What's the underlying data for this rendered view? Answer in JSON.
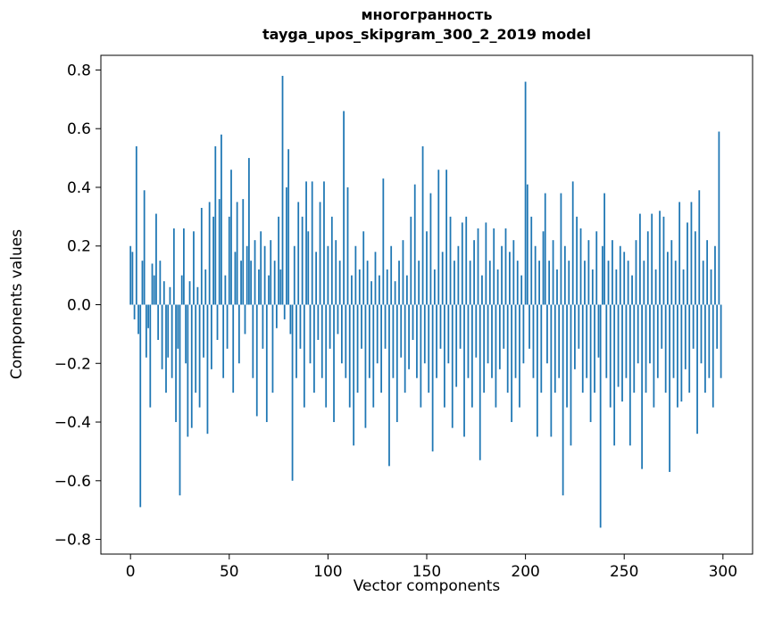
{
  "title": {
    "line1": "многогранность",
    "line2": "tayga_upos_skipgram_300_2_2019 model"
  },
  "chart_data": {
    "type": "bar",
    "title": "многогранность",
    "subtitle": "tayga_upos_skipgram_300_2_2019 model",
    "xlabel": "Vector components",
    "ylabel": "Components values",
    "xlim": [
      -15,
      315
    ],
    "ylim": [
      -0.85,
      0.85
    ],
    "x_ticks": [
      0,
      50,
      100,
      150,
      200,
      250,
      300
    ],
    "y_ticks": [
      -0.8,
      -0.6,
      -0.4,
      -0.2,
      0.0,
      0.2,
      0.4,
      0.6,
      0.8
    ],
    "bar_color": "#1f77b4",
    "bar_width": 0.8,
    "grid": false,
    "legend": null,
    "values": [
      0.2,
      0.18,
      -0.05,
      0.54,
      -0.1,
      -0.69,
      0.15,
      0.39,
      -0.18,
      -0.08,
      -0.35,
      0.14,
      0.1,
      0.31,
      -0.12,
      0.15,
      -0.22,
      0.08,
      -0.3,
      -0.18,
      0.06,
      -0.25,
      0.26,
      -0.4,
      -0.15,
      -0.65,
      0.1,
      0.26,
      -0.2,
      -0.45,
      0.08,
      -0.42,
      0.25,
      -0.3,
      0.06,
      -0.35,
      0.33,
      -0.18,
      0.12,
      -0.44,
      0.35,
      -0.22,
      0.3,
      0.54,
      -0.12,
      0.36,
      0.58,
      -0.25,
      0.1,
      -0.15,
      0.3,
      0.46,
      -0.3,
      0.18,
      0.35,
      -0.2,
      0.15,
      0.36,
      -0.1,
      0.2,
      0.5,
      0.15,
      -0.25,
      0.22,
      -0.38,
      0.12,
      0.25,
      -0.15,
      0.2,
      -0.4,
      0.1,
      0.22,
      -0.3,
      0.15,
      -0.08,
      0.3,
      0.12,
      0.78,
      -0.05,
      0.4,
      0.53,
      -0.1,
      -0.6,
      0.2,
      -0.25,
      0.35,
      -0.15,
      0.3,
      -0.35,
      0.42,
      0.25,
      -0.2,
      0.42,
      -0.3,
      0.18,
      -0.12,
      0.35,
      -0.25,
      0.42,
      -0.35,
      0.2,
      -0.15,
      0.3,
      -0.4,
      0.22,
      -0.1,
      0.15,
      -0.2,
      0.66,
      -0.25,
      0.4,
      -0.35,
      0.1,
      -0.48,
      0.2,
      -0.3,
      0.12,
      -0.15,
      0.25,
      -0.42,
      0.15,
      -0.25,
      0.08,
      -0.35,
      0.18,
      -0.2,
      0.1,
      -0.3,
      0.43,
      -0.15,
      0.12,
      -0.55,
      0.2,
      -0.25,
      0.08,
      -0.4,
      0.15,
      -0.18,
      0.22,
      -0.3,
      0.1,
      -0.22,
      0.3,
      -0.12,
      0.41,
      -0.25,
      0.15,
      -0.35,
      0.54,
      -0.2,
      0.25,
      -0.3,
      0.38,
      -0.5,
      0.12,
      -0.25,
      0.46,
      -0.15,
      0.18,
      -0.35,
      0.46,
      -0.2,
      0.3,
      -0.42,
      0.15,
      -0.28,
      0.2,
      -0.15,
      0.28,
      -0.45,
      0.3,
      -0.25,
      0.15,
      -0.35,
      0.22,
      -0.18,
      0.26,
      -0.53,
      0.1,
      -0.3,
      0.28,
      -0.2,
      0.15,
      -0.25,
      0.26,
      -0.35,
      0.12,
      -0.22,
      0.2,
      -0.15,
      0.26,
      -0.3,
      0.18,
      -0.4,
      0.22,
      -0.25,
      0.15,
      -0.35,
      0.1,
      -0.2,
      0.76,
      0.41,
      -0.15,
      0.3,
      -0.25,
      0.2,
      -0.45,
      0.15,
      -0.3,
      0.25,
      0.38,
      -0.2,
      0.15,
      -0.45,
      0.22,
      -0.3,
      0.12,
      -0.25,
      0.38,
      -0.65,
      0.2,
      -0.35,
      0.15,
      -0.48,
      0.42,
      -0.22,
      0.3,
      -0.15,
      0.26,
      -0.3,
      0.15,
      -0.25,
      0.22,
      -0.4,
      0.12,
      -0.3,
      0.25,
      -0.18,
      -0.76,
      0.2,
      0.38,
      -0.25,
      0.15,
      -0.35,
      0.22,
      -0.48,
      0.12,
      -0.28,
      0.2,
      -0.33,
      0.18,
      -0.25,
      0.15,
      -0.48,
      0.1,
      -0.3,
      0.22,
      -0.2,
      0.31,
      -0.56,
      0.15,
      -0.3,
      0.25,
      -0.2,
      0.31,
      -0.35,
      0.12,
      -0.25,
      0.32,
      -0.15,
      0.3,
      -0.3,
      0.18,
      -0.57,
      0.22,
      -0.25,
      0.15,
      -0.35,
      0.35,
      -0.33,
      0.12,
      -0.22,
      0.28,
      -0.3,
      0.35,
      -0.15,
      0.25,
      -0.44,
      0.39,
      -0.2,
      0.15,
      -0.3,
      0.22,
      -0.25,
      0.12,
      -0.35,
      0.2,
      -0.15,
      0.59,
      -0.25
    ]
  }
}
